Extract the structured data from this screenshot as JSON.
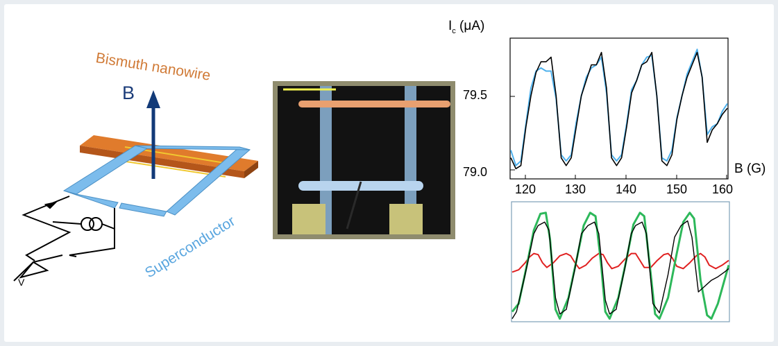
{
  "schematic": {
    "nanowire_label": "Bismuth nanowire",
    "field_label": "B",
    "superconductor_label": "Superconductor",
    "voltmeter_label": "V"
  },
  "plot_top": {
    "ylabel": "I",
    "ylabel_sub": "c",
    "ylabel_unit": " (μA)",
    "y_ticks": [
      "79.5",
      "79.0"
    ],
    "x_ticks": [
      "120",
      "130",
      "140",
      "150",
      "160"
    ],
    "xlabel": "B (G)"
  },
  "chart_data": [
    {
      "type": "line",
      "xlabel": "B (G)",
      "ylabel": "Ic (μA)",
      "xlim": [
        117,
        160
      ],
      "ylim": [
        79.0,
        79.85
      ],
      "x_ticks": [
        120,
        130,
        140,
        150,
        160
      ],
      "y_ticks": [
        79.0,
        79.5
      ],
      "series": [
        {
          "color": "#000000",
          "points": [
            [
              117,
              79.1
            ],
            [
              118,
              79.03
            ],
            [
              119,
              79.05
            ],
            [
              120,
              79.3
            ],
            [
              121,
              79.5
            ],
            [
              122,
              79.65
            ],
            [
              123,
              79.72
            ],
            [
              124,
              79.72
            ],
            [
              125,
              79.75
            ],
            [
              126,
              79.5
            ],
            [
              127,
              79.1
            ],
            [
              128,
              79.05
            ],
            [
              129,
              79.1
            ],
            [
              130,
              79.3
            ],
            [
              131,
              79.5
            ],
            [
              132,
              79.6
            ],
            [
              133,
              79.7
            ],
            [
              134,
              79.7
            ],
            [
              135,
              79.78
            ],
            [
              136,
              79.55
            ],
            [
              137,
              79.1
            ],
            [
              138,
              79.05
            ],
            [
              139,
              79.1
            ],
            [
              140,
              79.3
            ],
            [
              141,
              79.52
            ],
            [
              142,
              79.6
            ],
            [
              143,
              79.7
            ],
            [
              144,
              79.72
            ],
            [
              145,
              79.78
            ],
            [
              146,
              79.5
            ],
            [
              147,
              79.08
            ],
            [
              148,
              79.05
            ],
            [
              149,
              79.12
            ],
            [
              150,
              79.35
            ],
            [
              151,
              79.5
            ],
            [
              152,
              79.62
            ],
            [
              153,
              79.7
            ],
            [
              154,
              79.78
            ],
            [
              155,
              79.62
            ],
            [
              156,
              79.2
            ],
            [
              157,
              79.28
            ],
            [
              158,
              79.32
            ],
            [
              159,
              79.38
            ],
            [
              160,
              79.42
            ]
          ]
        },
        {
          "color": "#4db0ec",
          "points": [
            [
              117,
              79.15
            ],
            [
              118,
              79.05
            ],
            [
              119,
              79.08
            ],
            [
              120,
              79.32
            ],
            [
              121,
              79.55
            ],
            [
              122,
              79.66
            ],
            [
              123,
              79.68
            ],
            [
              124,
              79.66
            ],
            [
              125,
              79.66
            ],
            [
              126,
              79.48
            ],
            [
              127,
              79.12
            ],
            [
              128,
              79.08
            ],
            [
              129,
              79.12
            ],
            [
              130,
              79.33
            ],
            [
              131,
              79.5
            ],
            [
              132,
              79.62
            ],
            [
              133,
              79.68
            ],
            [
              134,
              79.7
            ],
            [
              135,
              79.75
            ],
            [
              136,
              79.52
            ],
            [
              137,
              79.12
            ],
            [
              138,
              79.08
            ],
            [
              139,
              79.12
            ],
            [
              140,
              79.32
            ],
            [
              141,
              79.54
            ],
            [
              142,
              79.6
            ],
            [
              143,
              79.7
            ],
            [
              144,
              79.75
            ],
            [
              145,
              79.76
            ],
            [
              146,
              79.5
            ],
            [
              147,
              79.1
            ],
            [
              148,
              79.08
            ],
            [
              149,
              79.15
            ],
            [
              150,
              79.36
            ],
            [
              151,
              79.5
            ],
            [
              152,
              79.64
            ],
            [
              153,
              79.72
            ],
            [
              154,
              79.8
            ],
            [
              155,
              79.62
            ],
            [
              156,
              79.25
            ],
            [
              157,
              79.3
            ],
            [
              158,
              79.32
            ],
            [
              159,
              79.4
            ],
            [
              160,
              79.45
            ]
          ]
        }
      ]
    },
    {
      "type": "line",
      "series": [
        {
          "color": "#000000",
          "points": [
            [
              0,
              0.02
            ],
            [
              0.02,
              0.08
            ],
            [
              0.06,
              0.4
            ],
            [
              0.1,
              0.75
            ],
            [
              0.12,
              0.82
            ],
            [
              0.15,
              0.85
            ],
            [
              0.17,
              0.78
            ],
            [
              0.2,
              0.2
            ],
            [
              0.22,
              0.06
            ],
            [
              0.25,
              0.1
            ],
            [
              0.29,
              0.45
            ],
            [
              0.32,
              0.75
            ],
            [
              0.35,
              0.82
            ],
            [
              0.38,
              0.85
            ],
            [
              0.4,
              0.75
            ],
            [
              0.43,
              0.18
            ],
            [
              0.45,
              0.06
            ],
            [
              0.48,
              0.1
            ],
            [
              0.52,
              0.45
            ],
            [
              0.55,
              0.75
            ],
            [
              0.57,
              0.82
            ],
            [
              0.6,
              0.85
            ],
            [
              0.62,
              0.75
            ],
            [
              0.65,
              0.15
            ],
            [
              0.68,
              0.07
            ],
            [
              0.72,
              0.4
            ],
            [
              0.75,
              0.72
            ],
            [
              0.78,
              0.82
            ],
            [
              0.81,
              0.86
            ],
            [
              0.83,
              0.72
            ],
            [
              0.86,
              0.25
            ],
            [
              0.89,
              0.3
            ],
            [
              0.92,
              0.35
            ],
            [
              0.95,
              0.38
            ],
            [
              0.98,
              0.42
            ],
            [
              1.0,
              0.45
            ]
          ]
        },
        {
          "color": "#2db85a",
          "points": [
            [
              0,
              0.08
            ],
            [
              0.03,
              0.15
            ],
            [
              0.07,
              0.5
            ],
            [
              0.1,
              0.78
            ],
            [
              0.13,
              0.92
            ],
            [
              0.155,
              0.93
            ],
            [
              0.175,
              0.7
            ],
            [
              0.2,
              0.1
            ],
            [
              0.22,
              0.02
            ],
            [
              0.26,
              0.2
            ],
            [
              0.3,
              0.55
            ],
            [
              0.33,
              0.82
            ],
            [
              0.36,
              0.93
            ],
            [
              0.385,
              0.9
            ],
            [
              0.41,
              0.5
            ],
            [
              0.43,
              0.08
            ],
            [
              0.45,
              0.02
            ],
            [
              0.49,
              0.2
            ],
            [
              0.53,
              0.55
            ],
            [
              0.56,
              0.83
            ],
            [
              0.59,
              0.93
            ],
            [
              0.61,
              0.9
            ],
            [
              0.64,
              0.4
            ],
            [
              0.66,
              0.06
            ],
            [
              0.68,
              0.02
            ],
            [
              0.72,
              0.2
            ],
            [
              0.76,
              0.58
            ],
            [
              0.79,
              0.85
            ],
            [
              0.82,
              0.93
            ],
            [
              0.84,
              0.88
            ],
            [
              0.87,
              0.35
            ],
            [
              0.9,
              0.05
            ],
            [
              0.92,
              0.02
            ],
            [
              0.95,
              0.15
            ],
            [
              0.98,
              0.35
            ],
            [
              1.0,
              0.48
            ]
          ]
        },
        {
          "color": "#e02020",
          "points": [
            [
              0,
              0.42
            ],
            [
              0.03,
              0.44
            ],
            [
              0.06,
              0.5
            ],
            [
              0.08,
              0.55
            ],
            [
              0.1,
              0.58
            ],
            [
              0.12,
              0.57
            ],
            [
              0.14,
              0.5
            ],
            [
              0.16,
              0.46
            ],
            [
              0.19,
              0.5
            ],
            [
              0.22,
              0.56
            ],
            [
              0.25,
              0.58
            ],
            [
              0.27,
              0.56
            ],
            [
              0.29,
              0.5
            ],
            [
              0.31,
              0.45
            ],
            [
              0.34,
              0.48
            ],
            [
              0.37,
              0.54
            ],
            [
              0.4,
              0.58
            ],
            [
              0.42,
              0.57
            ],
            [
              0.44,
              0.5
            ],
            [
              0.46,
              0.45
            ],
            [
              0.49,
              0.47
            ],
            [
              0.52,
              0.53
            ],
            [
              0.55,
              0.58
            ],
            [
              0.57,
              0.58
            ],
            [
              0.59,
              0.52
            ],
            [
              0.61,
              0.46
            ],
            [
              0.64,
              0.46
            ],
            [
              0.67,
              0.52
            ],
            [
              0.7,
              0.57
            ],
            [
              0.72,
              0.58
            ],
            [
              0.74,
              0.54
            ],
            [
              0.76,
              0.47
            ],
            [
              0.79,
              0.45
            ],
            [
              0.82,
              0.5
            ],
            [
              0.85,
              0.56
            ],
            [
              0.87,
              0.58
            ],
            [
              0.89,
              0.55
            ],
            [
              0.91,
              0.48
            ],
            [
              0.94,
              0.45
            ],
            [
              0.97,
              0.48
            ],
            [
              1.0,
              0.52
            ]
          ]
        }
      ]
    }
  ]
}
